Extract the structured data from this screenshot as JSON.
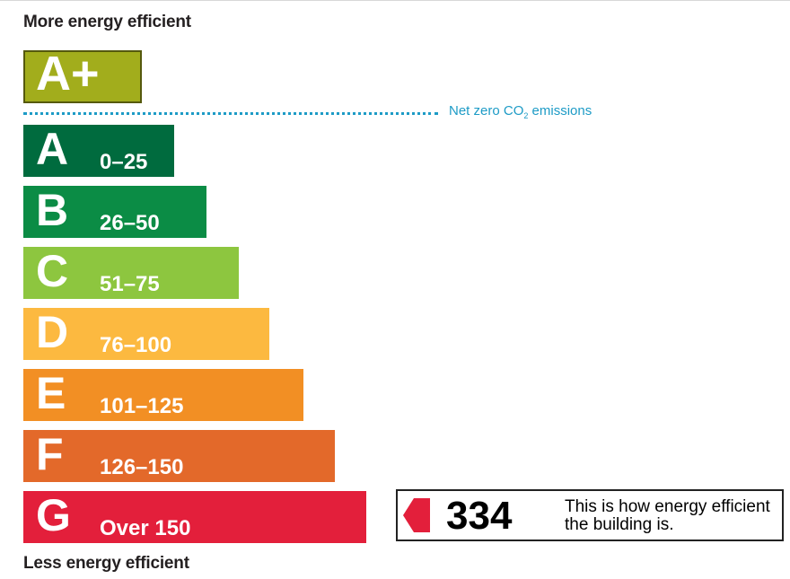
{
  "chart_data": {
    "type": "bar",
    "title_top": "More energy efficient",
    "title_bottom": "Less energy efficient",
    "net_zero": {
      "text_before": "Net zero CO",
      "subscript": "2",
      "text_after": " emissions",
      "color": "#1d9bc6"
    },
    "categories": [
      "A+",
      "A",
      "B",
      "C",
      "D",
      "E",
      "F",
      "G"
    ],
    "bands": [
      {
        "letter": "A",
        "range": "0–25",
        "color": "#006b3e"
      },
      {
        "letter": "B",
        "range": "26–50",
        "color": "#0b8c45"
      },
      {
        "letter": "C",
        "range": "51–75",
        "color": "#8dc63f"
      },
      {
        "letter": "D",
        "range": "76–100",
        "color": "#fcb940"
      },
      {
        "letter": "E",
        "range": "101–125",
        "color": "#f28f24"
      },
      {
        "letter": "F",
        "range": "126–150",
        "color": "#e3692a"
      },
      {
        "letter": "G",
        "range": "Over 150",
        "color": "#e31f3b"
      }
    ],
    "top_band": {
      "letter": "A+",
      "color": "#a2ad1c"
    },
    "rating": {
      "value": "334",
      "band": "G",
      "description": "This is how energy efficient the building is.",
      "arrow_color": "#e31f3b"
    }
  }
}
